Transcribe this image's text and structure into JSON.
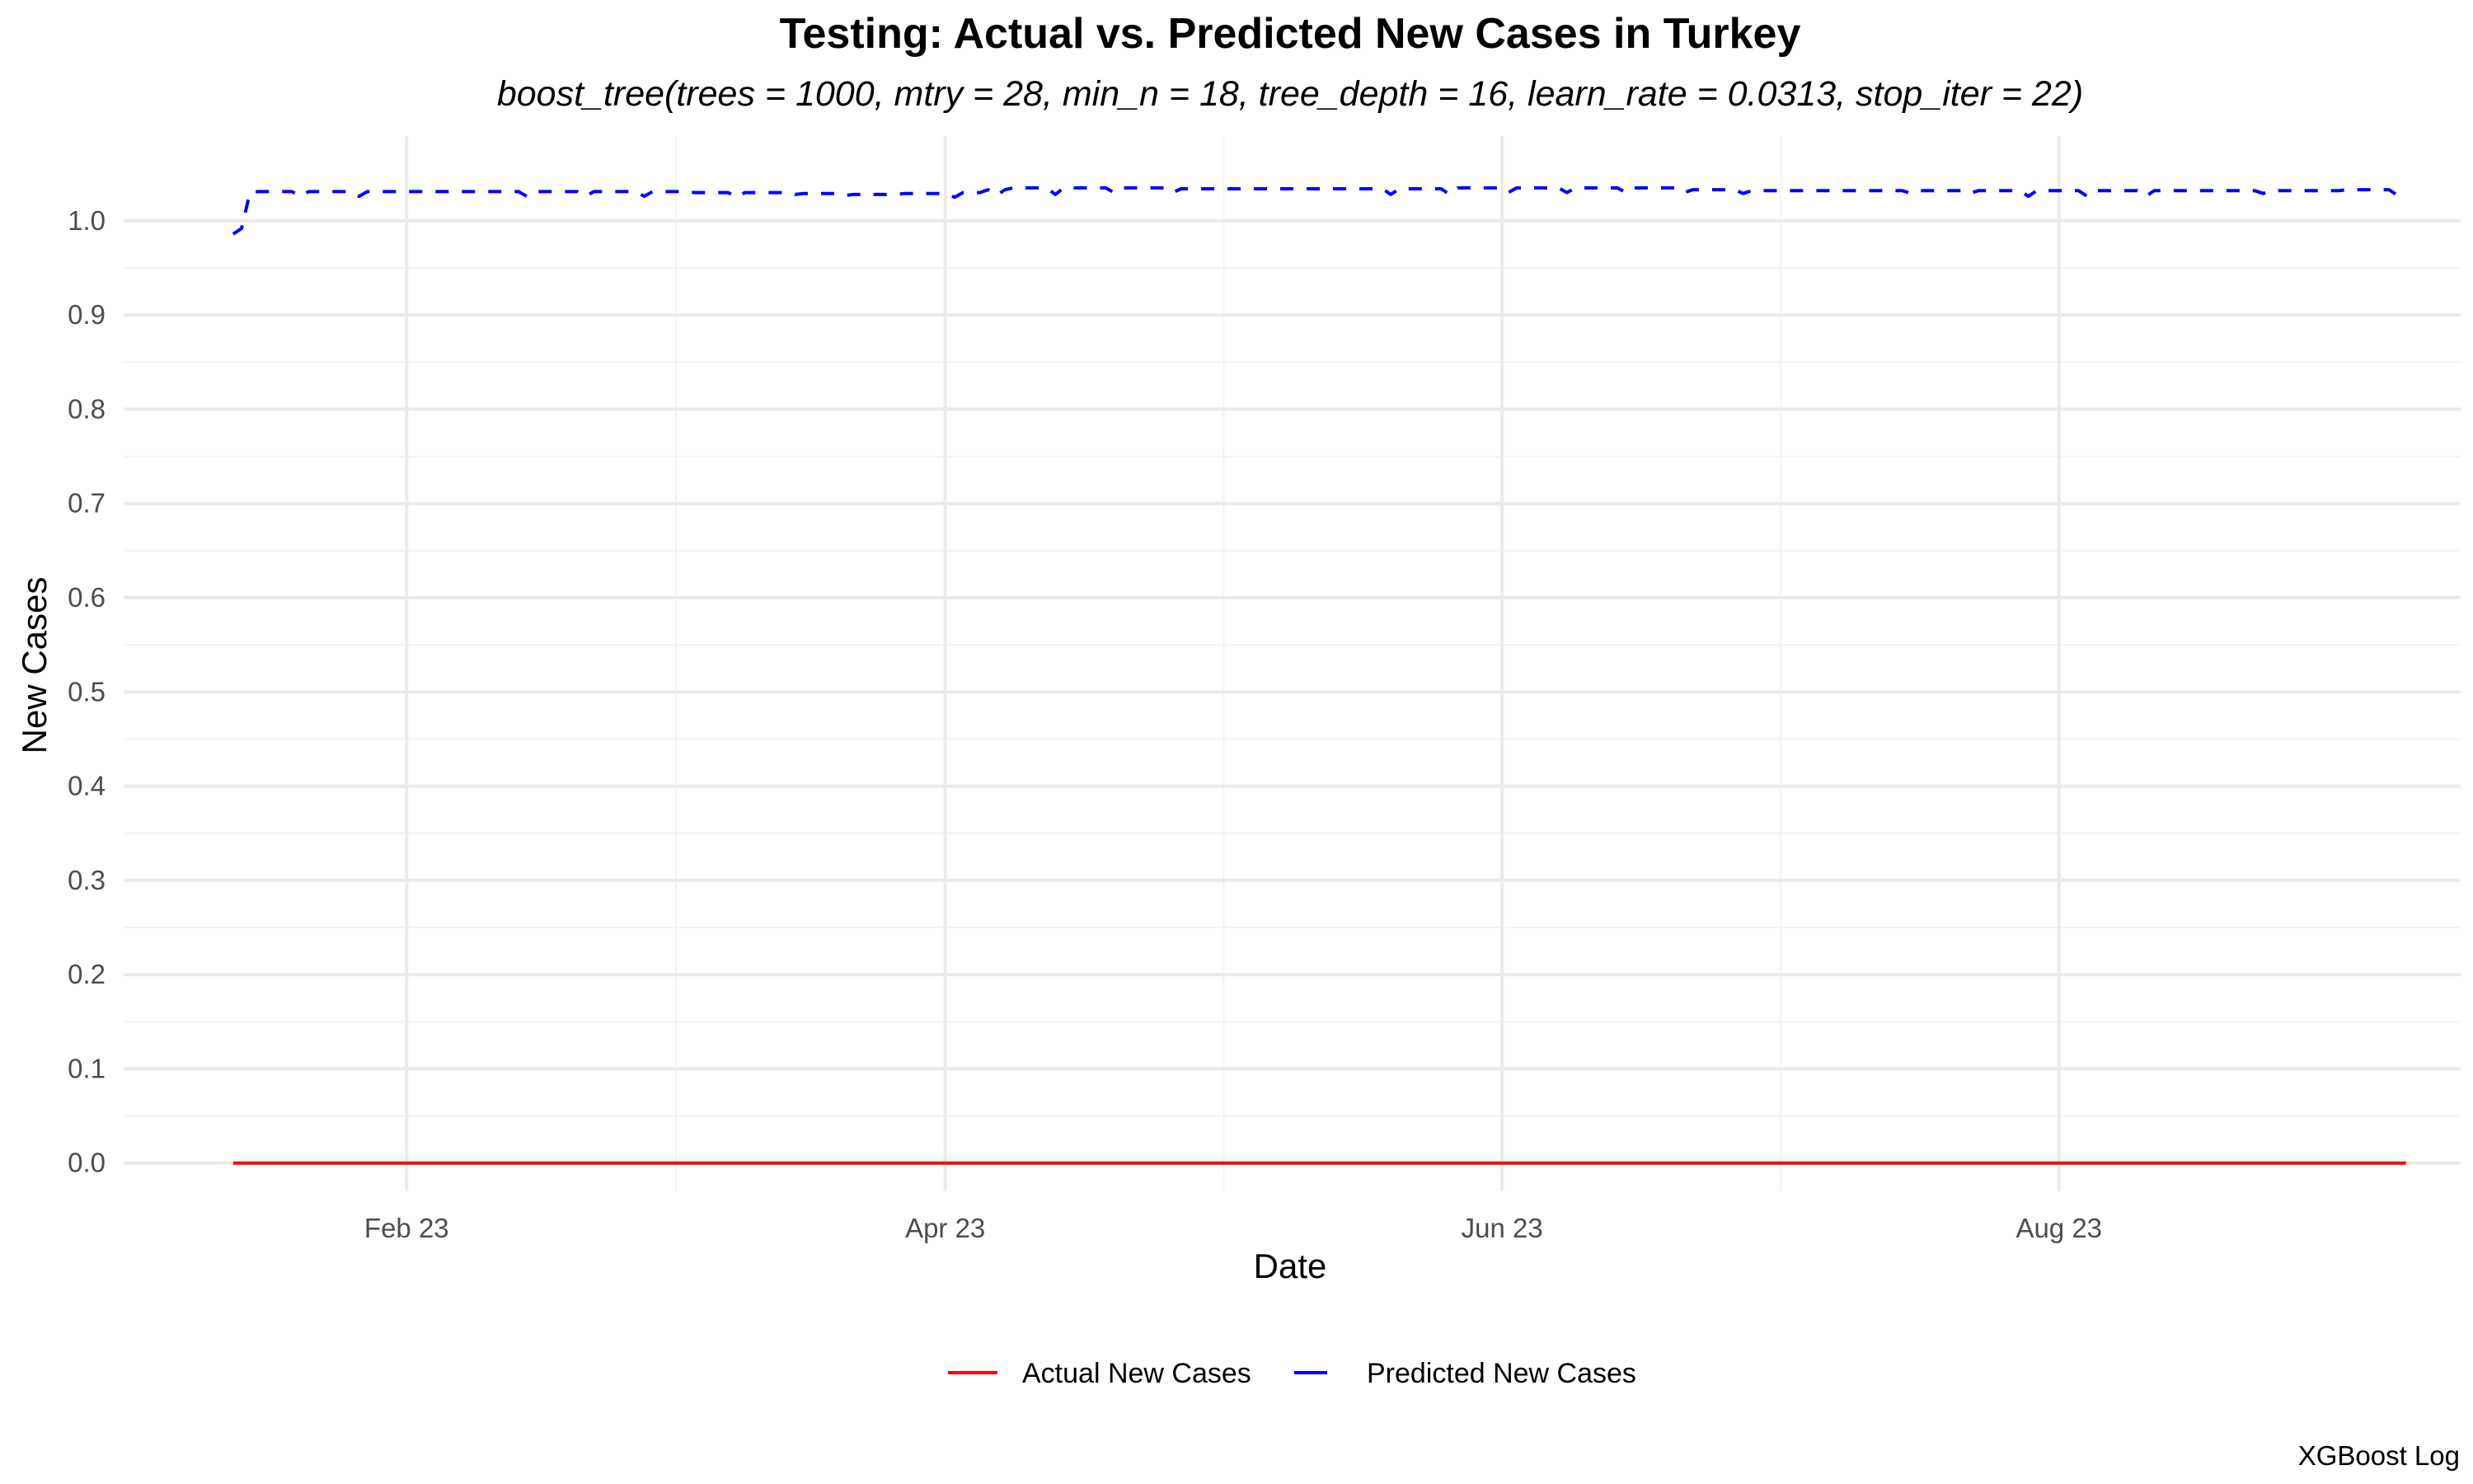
{
  "chart_data": {
    "type": "line",
    "title": "Testing: Actual vs. Predicted New Cases in Turkey",
    "subtitle": "boost_tree(trees = 1000, mtry = 28, min_n = 18, tree_depth = 16, learn_rate = 0.0313, stop_iter = 22)",
    "xlabel": "Date",
    "ylabel": "New Cases",
    "caption": "XGBoost Log",
    "x_range": [
      "2023-01-01",
      "2023-09-14"
    ],
    "ylim": [
      -0.03,
      1.09
    ],
    "x_ticks": [
      {
        "date": "2023-02-01",
        "label": "Feb 23"
      },
      {
        "date": "2023-04-01",
        "label": "Apr 23"
      },
      {
        "date": "2023-06-01",
        "label": "Jun 23"
      },
      {
        "date": "2023-08-01",
        "label": "Aug 23"
      }
    ],
    "y_ticks": [
      {
        "value": 0.0,
        "label": "0.0"
      },
      {
        "value": 0.1,
        "label": "0.1"
      },
      {
        "value": 0.2,
        "label": "0.2"
      },
      {
        "value": 0.3,
        "label": "0.3"
      },
      {
        "value": 0.4,
        "label": "0.4"
      },
      {
        "value": 0.5,
        "label": "0.5"
      },
      {
        "value": 0.6,
        "label": "0.6"
      },
      {
        "value": 0.7,
        "label": "0.7"
      },
      {
        "value": 0.8,
        "label": "0.8"
      },
      {
        "value": 0.9,
        "label": "0.9"
      },
      {
        "value": 1.0,
        "label": "1.0"
      }
    ],
    "grid": true,
    "legend_position": "bottom",
    "series": [
      {
        "name": "Actual New Cases",
        "color": "#FF0000",
        "dash": "solid",
        "start": "2023-01-13",
        "end": "2023-09-08",
        "values": [
          0.0,
          0.0
        ]
      },
      {
        "name": "Predicted New Cases",
        "color": "#0000FF",
        "dash": "dashed",
        "start": "2023-01-13",
        "end": "2023-09-08",
        "values": [
          0.986,
          0.992,
          1.03,
          1.031,
          1.031,
          1.031,
          1.031,
          1.031,
          1.026,
          1.031,
          1.031,
          1.031,
          1.031,
          1.031,
          1.031,
          1.026,
          1.031,
          1.031,
          1.031,
          1.031,
          1.031,
          1.031,
          1.031,
          1.031,
          1.031,
          1.031,
          1.031,
          1.031,
          1.031,
          1.031,
          1.031,
          1.031,
          1.031,
          1.031,
          1.031,
          1.026,
          1.031,
          1.031,
          1.031,
          1.031,
          1.031,
          1.031,
          1.026,
          1.031,
          1.031,
          1.031,
          1.031,
          1.031,
          1.031,
          1.026,
          1.031,
          1.031,
          1.031,
          1.031,
          1.031,
          1.03,
          1.03,
          1.03,
          1.03,
          1.03,
          1.025,
          1.03,
          1.03,
          1.03,
          1.03,
          1.03,
          1.03,
          1.028,
          1.029,
          1.029,
          1.029,
          1.029,
          1.029,
          1.027,
          1.028,
          1.028,
          1.028,
          1.028,
          1.028,
          1.028,
          1.029,
          1.029,
          1.029,
          1.029,
          1.029,
          1.029,
          1.025,
          1.03,
          1.03,
          1.03,
          1.033,
          1.027,
          1.033,
          1.035,
          1.035,
          1.035,
          1.035,
          1.035,
          1.028,
          1.035,
          1.035,
          1.035,
          1.035,
          1.035,
          1.035,
          1.03,
          1.035,
          1.035,
          1.035,
          1.035,
          1.035,
          1.035,
          1.03,
          1.034,
          1.034,
          1.034,
          1.034,
          1.034,
          1.034,
          1.034,
          1.034,
          1.034,
          1.034,
          1.034,
          1.034,
          1.034,
          1.034,
          1.034,
          1.034,
          1.034,
          1.034,
          1.034,
          1.034,
          1.034,
          1.034,
          1.034,
          1.034,
          1.034,
          1.028,
          1.034,
          1.034,
          1.034,
          1.034,
          1.034,
          1.034,
          1.028,
          1.035,
          1.035,
          1.035,
          1.035,
          1.035,
          1.035,
          1.03,
          1.035,
          1.035,
          1.035,
          1.035,
          1.035,
          1.035,
          1.03,
          1.035,
          1.035,
          1.035,
          1.035,
          1.035,
          1.035,
          1.03,
          1.035,
          1.035,
          1.035,
          1.035,
          1.035,
          1.035,
          1.03,
          1.033,
          1.033,
          1.033,
          1.033,
          1.033,
          1.033,
          1.029,
          1.032,
          1.032,
          1.032,
          1.032,
          1.032,
          1.032,
          1.032,
          1.032,
          1.032,
          1.032,
          1.032,
          1.032,
          1.032,
          1.032,
          1.032,
          1.032,
          1.032,
          1.032,
          1.032,
          1.029,
          1.032,
          1.032,
          1.032,
          1.032,
          1.032,
          1.032,
          1.029,
          1.032,
          1.032,
          1.032,
          1.032,
          1.032,
          1.032,
          1.026,
          1.032,
          1.032,
          1.032,
          1.032,
          1.032,
          1.032,
          1.026,
          1.032,
          1.032,
          1.032,
          1.032,
          1.032,
          1.032,
          1.026,
          1.032,
          1.032,
          1.032,
          1.032,
          1.032,
          1.032,
          1.032,
          1.032,
          1.032,
          1.032,
          1.032,
          1.032,
          1.032,
          1.029,
          1.032,
          1.032,
          1.032,
          1.032,
          1.032,
          1.032,
          1.032,
          1.032,
          1.032,
          1.033,
          1.033,
          1.033,
          1.033,
          1.033,
          1.033,
          1.027,
          1.033
        ]
      }
    ]
  }
}
